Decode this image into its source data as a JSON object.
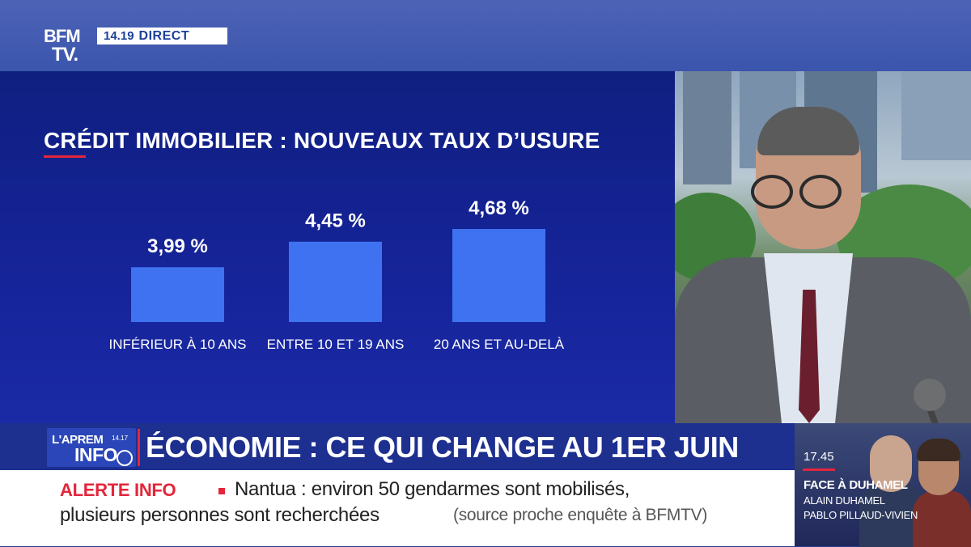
{
  "channel": {
    "logo_line1": "BFM",
    "logo_line2": "TV.",
    "time": "14.19",
    "live_label": "DIRECT"
  },
  "graphic": {
    "title": "CRÉDIT IMMOBILIER : NOUVEAUX TAUX D’USURE",
    "colors": {
      "background": "#16249a",
      "bar": "#3f72f0",
      "title_underline": "#e3263b"
    }
  },
  "chart_data": {
    "type": "bar",
    "title": "CRÉDIT IMMOBILIER : NOUVEAUX TAUX D’USURE",
    "categories": [
      "INFÉRIEUR À 10 ANS",
      "ENTRE 10 ET 19 ANS",
      "20 ANS ET AU-DELÀ"
    ],
    "values": [
      3.99,
      4.45,
      4.68
    ],
    "data_labels": [
      "3,99 %",
      "4,45 %",
      "4,68 %"
    ],
    "xlabel": "",
    "ylabel": "",
    "ylim": [
      0,
      5
    ],
    "grid": false
  },
  "headline": {
    "show_name_top": "L'APREM",
    "show_name_bottom": "INFO",
    "show_time": "14.17",
    "text": "ÉCONOMIE : CE QUI CHANGE AU 1ER JUIN"
  },
  "ticker": {
    "alert_label": "ALERTE INFO",
    "line1": "Nantua : environ 50 gendarmes sont mobilisés,",
    "line2": "plusieurs personnes sont recherchées",
    "source": "(source proche enquête à BFMTV)"
  },
  "promo": {
    "time": "17.45",
    "show": "FACE À DUHAMEL",
    "guest1": "ALAIN DUHAMEL",
    "guest2": "PABLO PILLAUD-VIVIEN"
  }
}
